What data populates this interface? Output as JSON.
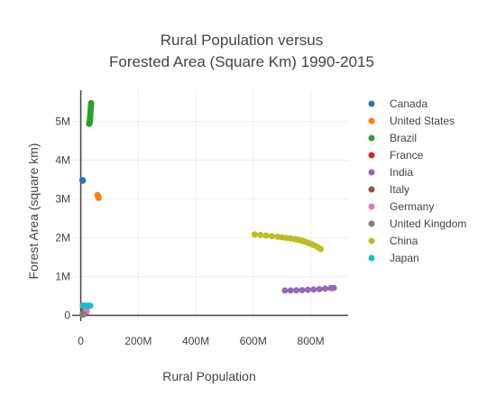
{
  "chart_data": {
    "type": "scatter",
    "title_lines": [
      "Rural Population versus",
      "Forested Area (Square Km) 1990-2015"
    ],
    "xlabel": "Rural Population",
    "ylabel": "Forest Area (square km)",
    "xlim": [
      -30000000,
      930000000
    ],
    "ylim": [
      -150000,
      5800000
    ],
    "x_ticks": [
      {
        "value": 0,
        "label": "0"
      },
      {
        "value": 200000000,
        "label": "200M"
      },
      {
        "value": 400000000,
        "label": "400M"
      },
      {
        "value": 600000000,
        "label": "600M"
      },
      {
        "value": 800000000,
        "label": "800M"
      }
    ],
    "y_ticks": [
      {
        "value": 0,
        "label": "0"
      },
      {
        "value": 1000000,
        "label": "1M"
      },
      {
        "value": 2000000,
        "label": "2M"
      },
      {
        "value": 3000000,
        "label": "3M"
      },
      {
        "value": 4000000,
        "label": "4M"
      },
      {
        "value": 5000000,
        "label": "5M"
      }
    ],
    "grid": true,
    "legend_position": "right",
    "series": [
      {
        "name": "Canada",
        "color": "#1f77b4",
        "x": [
          6300000,
          6350000,
          6400000,
          6450000,
          6500000,
          6600000
        ],
        "y": [
          3482700,
          3481000,
          3479500,
          3478000,
          3476300,
          3470000
        ]
      },
      {
        "name": "United States",
        "color": "#ff7f0e",
        "x": [
          62000000,
          61500000,
          61000000,
          60500000,
          60000000,
          59500000,
          59000000,
          58500000
        ],
        "y": [
          3024500,
          3035000,
          3045000,
          3055000,
          3065000,
          3075000,
          3085000,
          3100000
        ]
      },
      {
        "name": "Brazil",
        "color": "#2ca02c",
        "x": [
          36000000,
          35500000,
          35000000,
          34500000,
          34000000,
          33500000,
          33000000,
          32500000,
          32000000,
          31500000,
          31000000,
          30500000,
          30000000,
          29500000,
          29000000
        ],
        "y": [
          5467050,
          5400000,
          5350000,
          5300000,
          5250000,
          5200000,
          5150000,
          5100000,
          5050000,
          5000000,
          4980000,
          4965000,
          4950000,
          4940000,
          4935000
        ]
      },
      {
        "name": "France",
        "color": "#d62728",
        "x": [
          13000000,
          12900000,
          12800000,
          12700000,
          12600000
        ],
        "y": [
          145400,
          150000,
          155000,
          162000,
          169000
        ]
      },
      {
        "name": "India",
        "color": "#9467bd",
        "x": [
          710000000,
          730000000,
          750000000,
          770000000,
          790000000,
          810000000,
          830000000,
          850000000,
          870000000,
          880000000
        ],
        "y": [
          639390,
          642000,
          645000,
          650000,
          657000,
          665000,
          675000,
          688000,
          700000,
          706000
        ]
      },
      {
        "name": "Italy",
        "color": "#8c564b",
        "x": [
          18000000,
          18200000,
          18400000,
          18600000,
          18800000
        ],
        "y": [
          75900,
          80000,
          84000,
          88000,
          92000
        ]
      },
      {
        "name": "Germany",
        "color": "#e377c2",
        "x": [
          21000000,
          20000000,
          19000000,
          18000000,
          17500000
        ],
        "y": [
          113000,
          113500,
          114000,
          114200,
          114190
        ]
      },
      {
        "name": "United Kingdom",
        "color": "#7f7f7f",
        "x": [
          6500000,
          7000000,
          8000000,
          9000000,
          10000000,
          11000000
        ],
        "y": [
          26000,
          27500,
          29000,
          30000,
          30500,
          31000
        ]
      },
      {
        "name": "China",
        "color": "#bcbd22",
        "x": [
          605000000,
          625000000,
          645000000,
          665000000,
          685000000,
          700000000,
          715000000,
          730000000,
          745000000,
          755000000,
          765000000,
          775000000,
          785000000,
          795000000,
          805000000,
          815000000,
          825000000,
          835000000
        ],
        "y": [
          2085000,
          2070000,
          2055000,
          2040000,
          2025000,
          2010000,
          1995000,
          1980000,
          1965000,
          1950000,
          1930000,
          1910000,
          1885000,
          1860000,
          1830000,
          1795000,
          1755000,
          1710000
        ]
      },
      {
        "name": "Japan",
        "color": "#17becf",
        "x": [
          7000000,
          10000000,
          14000000,
          18000000,
          22000000,
          26000000,
          30000000,
          33000000
        ],
        "y": [
          249500,
          249400,
          249300,
          249300,
          249200,
          249100,
          249000,
          249000
        ]
      }
    ]
  }
}
